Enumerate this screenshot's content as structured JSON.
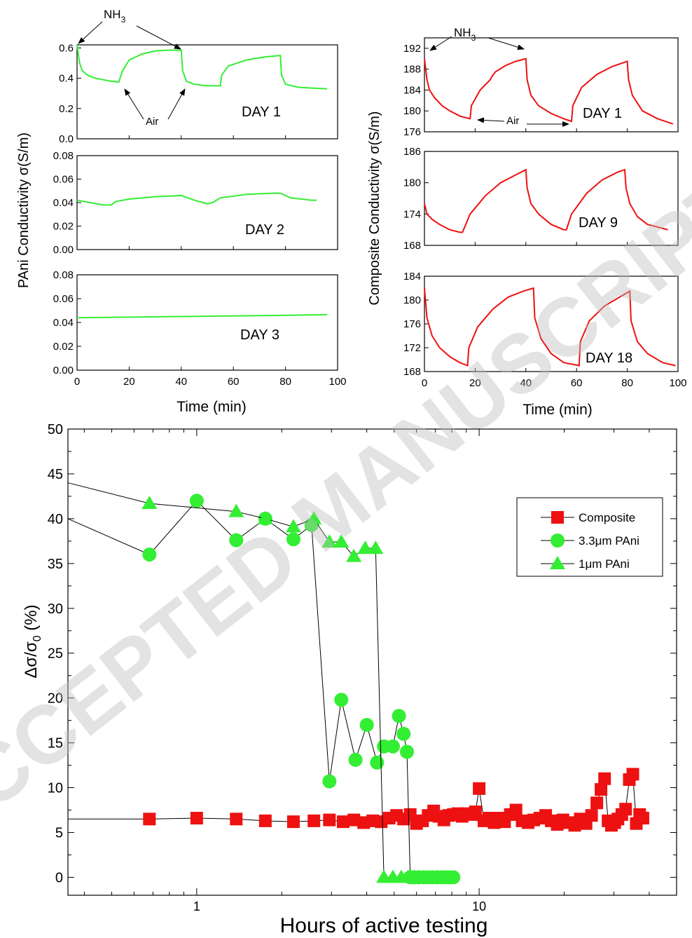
{
  "watermark": "ACCEPTED MANUSCRIPT",
  "colors": {
    "pani": "#33ee33",
    "composite": "#ee1111",
    "axis": "#000000",
    "grid": "#ffffff"
  },
  "chart_data": [
    {
      "id": "pani",
      "type": "line",
      "ylabel": "PAni Conductivity  σ(S/m)",
      "xlabel": "Time  (min)",
      "xlim": [
        0,
        100
      ],
      "xticks": [
        "0",
        "20",
        "40",
        "60",
        "80",
        "100"
      ],
      "panels": [
        {
          "label": "DAY 1",
          "ylim": [
            0,
            0.62
          ],
          "yticks": [
            "0.0",
            "0.2",
            "0.4",
            "0.6"
          ],
          "annotations": [
            "NH3",
            "Air"
          ],
          "x": [
            0,
            1,
            2,
            4,
            7,
            10,
            13,
            16,
            17.5,
            20,
            25,
            30,
            35,
            40,
            40.5,
            42,
            45,
            50,
            55,
            55.5,
            58,
            65,
            72,
            78,
            78.5,
            80,
            85,
            90,
            96
          ],
          "y": [
            0.62,
            0.5,
            0.45,
            0.42,
            0.4,
            0.39,
            0.38,
            0.375,
            0.45,
            0.52,
            0.56,
            0.58,
            0.585,
            0.585,
            0.45,
            0.38,
            0.36,
            0.35,
            0.35,
            0.42,
            0.48,
            0.52,
            0.54,
            0.55,
            0.42,
            0.36,
            0.34,
            0.335,
            0.33
          ]
        },
        {
          "label": "DAY 2",
          "ylim": [
            0,
            0.08
          ],
          "yticks": [
            "0.00",
            "0.02",
            "0.04",
            "0.06",
            "0.08"
          ],
          "x": [
            0,
            5,
            10,
            13,
            15,
            20,
            30,
            40,
            45,
            50,
            52,
            55,
            65,
            75,
            78,
            82,
            90,
            92
          ],
          "y": [
            0.042,
            0.04,
            0.038,
            0.038,
            0.041,
            0.043,
            0.045,
            0.046,
            0.042,
            0.039,
            0.04,
            0.044,
            0.047,
            0.048,
            0.048,
            0.044,
            0.042,
            0.042
          ]
        },
        {
          "label": "DAY 3",
          "ylim": [
            0,
            0.08
          ],
          "yticks": [
            "0.00",
            "0.02",
            "0.04",
            "0.06",
            "0.08"
          ],
          "x": [
            0,
            20,
            40,
            60,
            80,
            96
          ],
          "y": [
            0.044,
            0.0445,
            0.045,
            0.0455,
            0.046,
            0.0465
          ]
        }
      ]
    },
    {
      "id": "composite",
      "type": "line",
      "ylabel": "Composite Conductivity  σ(S/m)",
      "xlabel": "Time  (min)",
      "xlim": [
        0,
        100
      ],
      "xticks": [
        "0",
        "20",
        "40",
        "60",
        "80",
        "100"
      ],
      "panels": [
        {
          "label": "DAY 1",
          "ylim": [
            176,
            194
          ],
          "yticks": [
            "176",
            "180",
            "184",
            "188",
            "192"
          ],
          "annotations": [
            "NH3",
            "Air"
          ],
          "x": [
            0,
            1,
            2,
            4,
            7,
            10,
            14,
            18,
            18.5,
            22,
            26,
            26.5,
            28,
            32,
            36,
            40,
            40.5,
            42,
            45,
            50,
            55,
            58,
            58.5,
            62,
            68,
            74,
            80,
            80.5,
            82,
            86,
            92,
            98
          ],
          "y": [
            190,
            186,
            184,
            182.5,
            181,
            180,
            179,
            178.5,
            181,
            184,
            186,
            186.5,
            187.5,
            188.7,
            189.5,
            190,
            186,
            183,
            181,
            179.5,
            178.5,
            178,
            181,
            184.5,
            187,
            188.5,
            189.5,
            186,
            183,
            180,
            178.5,
            177.5
          ]
        },
        {
          "label": "DAY 9",
          "ylim": [
            168,
            186
          ],
          "yticks": [
            "168",
            "174",
            "180",
            "186"
          ],
          "x": [
            0,
            1,
            3,
            6,
            10,
            14,
            15,
            18,
            24,
            30,
            36,
            40,
            40.5,
            42,
            45,
            50,
            55,
            56,
            58,
            64,
            70,
            76,
            79,
            79.5,
            81,
            84,
            88,
            92,
            96
          ],
          "y": [
            176,
            174,
            173,
            172,
            171,
            170.5,
            170.5,
            174,
            177.5,
            180,
            181.5,
            182.5,
            179,
            176,
            174,
            172,
            171,
            171,
            174,
            178,
            180.5,
            182,
            182.5,
            179,
            176,
            173.5,
            172,
            171.5,
            171
          ]
        },
        {
          "label": "DAY 18",
          "ylim": [
            168,
            184
          ],
          "yticks": [
            "168",
            "172",
            "176",
            "180",
            "184"
          ],
          "x": [
            0,
            1,
            3,
            6,
            10,
            14,
            17,
            17.5,
            21,
            27,
            33,
            39,
            43,
            43.5,
            46,
            50,
            55,
            61,
            61.5,
            65,
            71,
            77,
            81,
            81.5,
            84,
            88,
            94,
            99
          ],
          "y": [
            182,
            177,
            174,
            172,
            170.5,
            169.5,
            169,
            172,
            175.5,
            178.5,
            180.5,
            181.5,
            182,
            177,
            173.5,
            171,
            169.5,
            169,
            173,
            176.5,
            179,
            180.5,
            181.5,
            176.5,
            173,
            171,
            169.5,
            169
          ]
        }
      ]
    },
    {
      "id": "response",
      "type": "scatter",
      "xscale": "log",
      "xlabel": "Hours of active testing",
      "ylabel": "Δσ/σ0 (%)",
      "xlim": [
        0.35,
        50
      ],
      "ylim": [
        -2,
        50
      ],
      "xticks": [
        "1",
        "10"
      ],
      "yticks": [
        "0",
        "5",
        "10",
        "15",
        "20",
        "25",
        "30",
        "35",
        "40",
        "45",
        "50"
      ],
      "legend_position": "right",
      "series": [
        {
          "name": "Composite",
          "marker": "square",
          "x": [
            0.35,
            0.68,
            1.0,
            1.38,
            1.75,
            2.2,
            2.6,
            2.95,
            3.3,
            3.6,
            3.9,
            4.2,
            4.5,
            4.8,
            5.1,
            5.4,
            5.7,
            6.0,
            6.3,
            6.6,
            6.9,
            7.2,
            7.5,
            7.8,
            8.1,
            8.4,
            8.7,
            9.0,
            9.4,
            9.7,
            10.0,
            10.4,
            10.8,
            11.3,
            11.8,
            12.3,
            12.9,
            13.5,
            14.2,
            14.9,
            15.6,
            16.4,
            17.2,
            18.0,
            18.9,
            19.8,
            20.8,
            21.8,
            22.8,
            23.9,
            25.0,
            26.1,
            27.0,
            27.8,
            28.6,
            29.4,
            30.2,
            31.0,
            32.0,
            33.0,
            34.0,
            35.0,
            36.0,
            37.0,
            38.0
          ],
          "y": [
            6.5,
            6.5,
            6.6,
            6.5,
            6.3,
            6.2,
            6.3,
            6.4,
            6.2,
            6.4,
            6.1,
            6.3,
            6.2,
            6.6,
            6.9,
            6.5,
            7.0,
            6.0,
            6.3,
            6.9,
            7.4,
            6.8,
            6.4,
            6.9,
            7.0,
            7.1,
            6.8,
            7.1,
            7.0,
            7.3,
            9.9,
            6.3,
            6.6,
            6.1,
            6.6,
            6.2,
            7.0,
            7.5,
            6.3,
            6.1,
            6.4,
            6.6,
            6.9,
            6.3,
            5.9,
            6.4,
            6.1,
            5.8,
            6.5,
            6.0,
            6.9,
            8.3,
            9.8,
            11.0,
            6.3,
            5.8,
            6.1,
            6.5,
            7.0,
            7.6,
            10.9,
            11.5,
            6.0,
            7.0,
            6.6
          ]
        },
        {
          "name": "3.3μm PAni",
          "marker": "circle",
          "x": [
            0.35,
            0.68,
            1.0,
            1.38,
            1.75,
            2.2,
            2.55,
            2.95,
            3.25,
            3.65,
            4.0,
            4.35,
            4.6,
            4.95,
            5.2,
            5.4,
            5.55,
            5.7,
            5.9,
            6.1,
            6.35,
            6.6,
            6.85,
            7.1,
            7.35,
            7.6,
            7.85,
            8.1
          ],
          "y": [
            40,
            36,
            42,
            37.6,
            40,
            37.7,
            39.3,
            10.7,
            19.8,
            13.1,
            17,
            12.8,
            14.6,
            14.6,
            18,
            16,
            14,
            0,
            0,
            0,
            0,
            0,
            0,
            0,
            0,
            0,
            0,
            0
          ]
        },
        {
          "name": "1μm PAni",
          "marker": "triangle",
          "x": [
            0.35,
            0.68,
            1.38,
            1.75,
            2.2,
            2.6,
            2.95,
            3.25,
            3.6,
            3.95,
            4.3,
            4.6,
            4.95,
            5.3,
            5.6,
            5.9
          ],
          "y": [
            44,
            41.7,
            40.8,
            40,
            39.1,
            40,
            37.4,
            37.4,
            35.8,
            36.7,
            36.7,
            0,
            0,
            0,
            0,
            0
          ]
        }
      ]
    }
  ]
}
